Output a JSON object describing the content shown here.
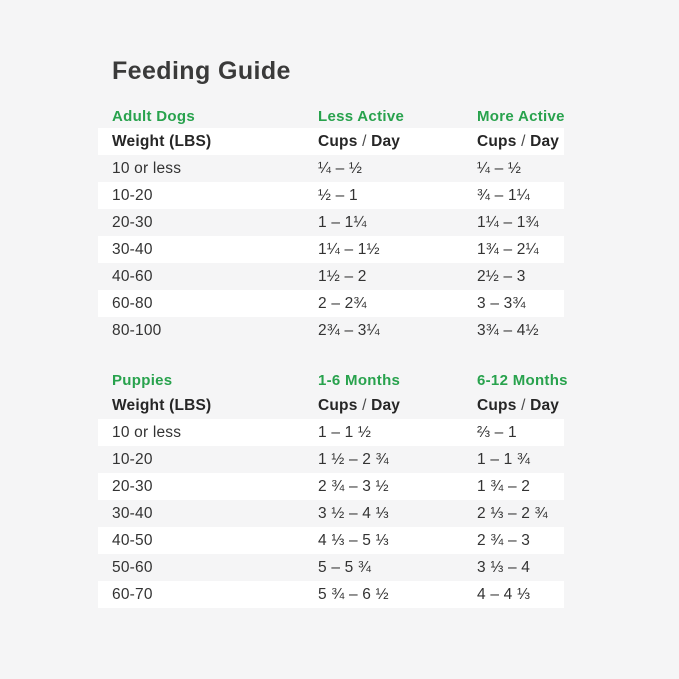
{
  "page": {
    "title": "Feeding Guide"
  },
  "colors": {
    "accent_green": "#28a24d",
    "background": "#f5f5f6",
    "stripe_white": "#ffffff",
    "text_dark": "#303030"
  },
  "tables": [
    {
      "id": "adult-dogs",
      "section_headers": [
        "Adult Dogs",
        "Less Active",
        "More Active"
      ],
      "column_headers": [
        "Weight (LBS)",
        "Cups / Day",
        "Cups / Day"
      ],
      "rows": [
        [
          "10 or less",
          "¼ – ½",
          "¼ – ½"
        ],
        [
          "10-20",
          "½ – 1",
          "¾ – 1¼"
        ],
        [
          "20-30",
          "1 – 1¼",
          "1¼ – 1¾"
        ],
        [
          "30-40",
          "1¼ – 1½",
          "1¾ – 2¼"
        ],
        [
          "40-60",
          "1½ – 2",
          "2½ – 3"
        ],
        [
          "60-80",
          "2 – 2¾",
          "3 – 3¾"
        ],
        [
          "80-100",
          "2¾ – 3¼",
          "3¾ – 4½"
        ]
      ]
    },
    {
      "id": "puppies",
      "section_headers": [
        "Puppies",
        "1-6 Months",
        "6-12 Months"
      ],
      "column_headers": [
        "Weight (LBS)",
        "Cups / Day",
        "Cups / Day"
      ],
      "rows": [
        [
          "10 or less",
          "1 – 1 ½",
          "⅔ – 1"
        ],
        [
          "10-20",
          "1 ½ – 2 ¾",
          "1 – 1 ¾"
        ],
        [
          "20-30",
          "2 ¾ – 3 ½",
          "1 ¾ – 2"
        ],
        [
          "30-40",
          "3 ½ – 4 ⅓",
          "2 ⅓ – 2 ¾"
        ],
        [
          "40-50",
          "4 ⅓ – 5 ⅓",
          "2 ¾ – 3"
        ],
        [
          "50-60",
          "5 – 5 ¾",
          "3 ⅓ – 4"
        ],
        [
          "60-70",
          "5 ¾ – 6 ½",
          "4 – 4 ⅓"
        ]
      ]
    }
  ]
}
